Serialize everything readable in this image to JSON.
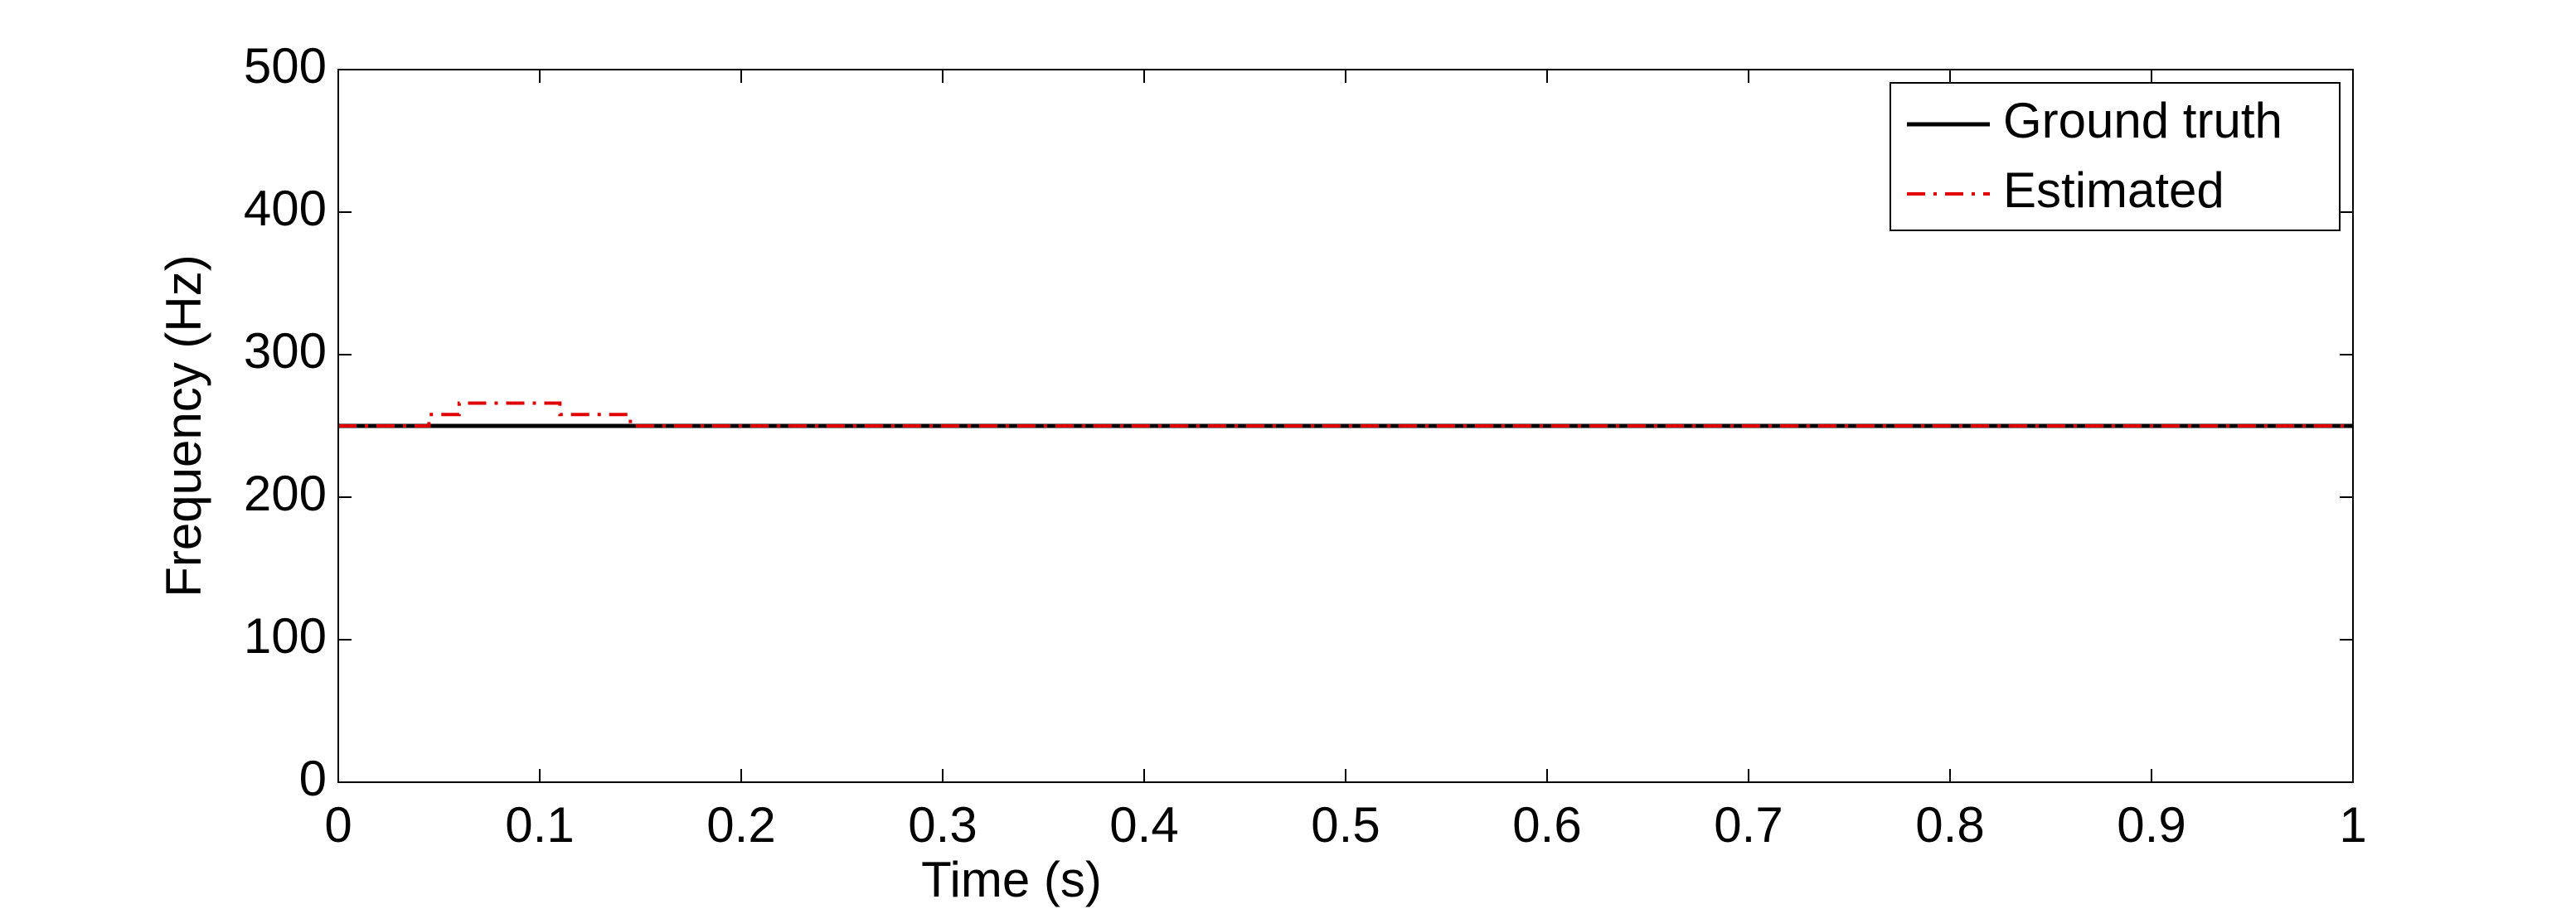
{
  "chart_data": {
    "type": "line",
    "xlabel": "Time (s)",
    "ylabel": "Frequency (Hz)",
    "series": [
      {
        "name": "Ground truth",
        "color": "#000000",
        "linestyle": "solid",
        "x": [
          0,
          1
        ],
        "values": [
          250,
          250
        ]
      },
      {
        "name": "Estimated",
        "color": "#e00000",
        "linestyle": "dashdot",
        "x": [
          0,
          0.045,
          0.045,
          0.06,
          0.06,
          0.11,
          0.11,
          0.145,
          0.145,
          1
        ],
        "values": [
          250,
          250,
          258,
          258,
          266,
          266,
          258,
          258,
          250,
          250
        ]
      }
    ],
    "xlim": [
      0,
      1
    ],
    "xticks": [
      0,
      0.1,
      0.2,
      0.3,
      0.4,
      0.5,
      0.6,
      0.7,
      0.8,
      0.9,
      1
    ],
    "ylim": [
      0,
      500
    ],
    "yticks": [
      0,
      100,
      200,
      300,
      400,
      500
    ],
    "grid": false,
    "legend": "upper right"
  }
}
